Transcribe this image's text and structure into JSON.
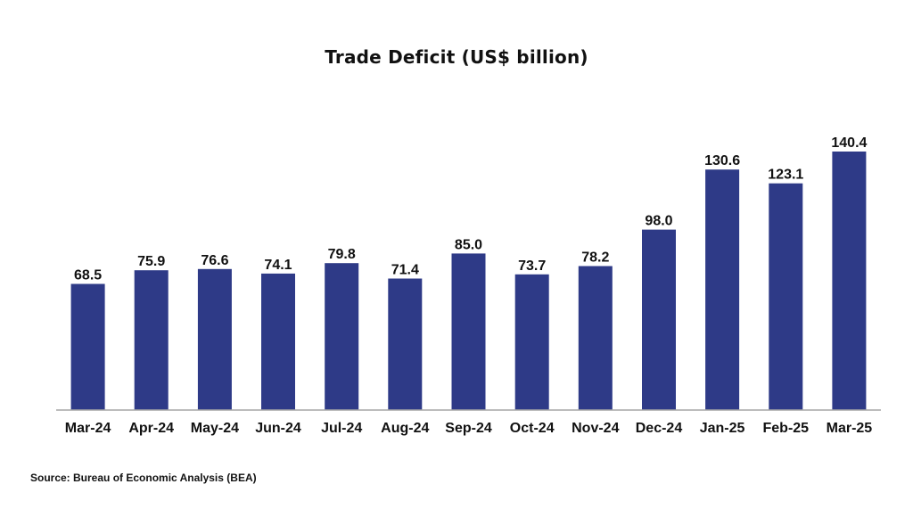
{
  "chart_data": {
    "type": "bar",
    "title": "Trade Deficit (US$ billion)",
    "categories": [
      "Mar-24",
      "Apr-24",
      "May-24",
      "Jun-24",
      "Jul-24",
      "Aug-24",
      "Sep-24",
      "Oct-24",
      "Nov-24",
      "Dec-24",
      "Jan-25",
      "Feb-25",
      "Mar-25"
    ],
    "values": [
      68.5,
      75.9,
      76.6,
      74.1,
      79.8,
      71.4,
      85.0,
      73.7,
      78.2,
      98.0,
      130.6,
      123.1,
      140.4
    ],
    "value_labels": [
      "68.5",
      "75.9",
      "76.6",
      "74.1",
      "79.8",
      "71.4",
      "85.0",
      "73.7",
      "78.2",
      "98.0",
      "130.6",
      "123.1",
      "140.4"
    ],
    "xlabel": "",
    "ylabel": "",
    "ylim": [
      0,
      140.4
    ],
    "grid": false,
    "legend": "none",
    "bar_color": "#2e3a87",
    "axis_color": "#a6a6a6"
  },
  "source": "Source: Bureau of Economic Analysis (BEA)"
}
